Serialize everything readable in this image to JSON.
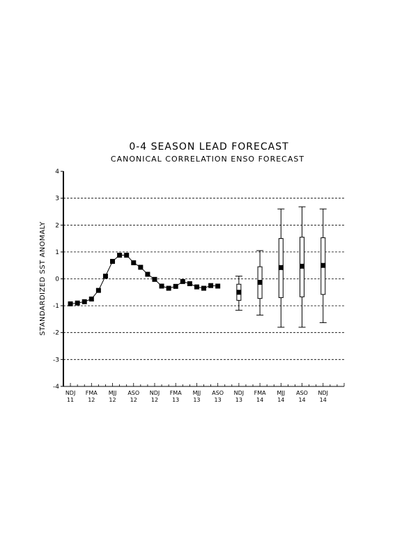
{
  "chart_data": {
    "type": "line",
    "title": "0-4 SEASON LEAD FORECAST",
    "subtitle": "CANONICAL CORRELATION ENSO FORECAST",
    "ylabel": "STANDARDIZED SST ANOMALY",
    "xlabel": "",
    "ylim": [
      -4,
      4
    ],
    "yticks": [
      -4,
      -3,
      -2,
      -1,
      0,
      1,
      2,
      3,
      4
    ],
    "grid": "horizontal dashed",
    "x_tick_labels": [
      {
        "season": "NDJ",
        "year": "11",
        "index": 0
      },
      {
        "season": "FMA",
        "year": "12",
        "index": 3
      },
      {
        "season": "MJJ",
        "year": "12",
        "index": 6
      },
      {
        "season": "ASO",
        "year": "12",
        "index": 9
      },
      {
        "season": "NDJ",
        "year": "12",
        "index": 12
      },
      {
        "season": "FMA",
        "year": "13",
        "index": 15
      },
      {
        "season": "MJJ",
        "year": "13",
        "index": 18
      },
      {
        "season": "ASO",
        "year": "13",
        "index": 21
      },
      {
        "season": "NDJ",
        "year": "13",
        "index": 24
      },
      {
        "season": "FMA",
        "year": "14",
        "index": 27
      },
      {
        "season": "MJJ",
        "year": "14",
        "index": 30
      },
      {
        "season": "ASO",
        "year": "14",
        "index": 33
      },
      {
        "season": "NDJ",
        "year": "14",
        "index": 36
      }
    ],
    "observed": [
      {
        "index": 0,
        "value": -0.93
      },
      {
        "index": 1,
        "value": -0.9
      },
      {
        "index": 2,
        "value": -0.85
      },
      {
        "index": 3,
        "value": -0.75
      },
      {
        "index": 4,
        "value": -0.43
      },
      {
        "index": 5,
        "value": 0.1
      },
      {
        "index": 6,
        "value": 0.65
      },
      {
        "index": 7,
        "value": 0.88
      },
      {
        "index": 8,
        "value": 0.88
      },
      {
        "index": 9,
        "value": 0.6
      },
      {
        "index": 10,
        "value": 0.43
      },
      {
        "index": 11,
        "value": 0.17
      },
      {
        "index": 12,
        "value": -0.02
      },
      {
        "index": 13,
        "value": -0.27
      },
      {
        "index": 14,
        "value": -0.35
      },
      {
        "index": 15,
        "value": -0.28
      },
      {
        "index": 16,
        "value": -0.1
      },
      {
        "index": 17,
        "value": -0.18
      },
      {
        "index": 18,
        "value": -0.3
      },
      {
        "index": 19,
        "value": -0.35
      },
      {
        "index": 20,
        "value": -0.25
      },
      {
        "index": 21,
        "value": -0.27
      }
    ],
    "forecasts": [
      {
        "index": 24,
        "median": -0.5,
        "box_low": -0.8,
        "box_high": -0.2,
        "whisker_low": -1.17,
        "whisker_high": 0.1
      },
      {
        "index": 27,
        "median": -0.13,
        "box_low": -0.73,
        "box_high": 0.45,
        "whisker_low": -1.35,
        "whisker_high": 1.05
      },
      {
        "index": 30,
        "median": 0.42,
        "box_low": -0.7,
        "box_high": 1.5,
        "whisker_low": -1.8,
        "whisker_high": 2.6
      },
      {
        "index": 33,
        "median": 0.47,
        "box_low": -0.67,
        "box_high": 1.55,
        "whisker_low": -1.8,
        "whisker_high": 2.68
      },
      {
        "index": 36,
        "median": 0.5,
        "box_low": -0.58,
        "box_high": 1.53,
        "whisker_low": -1.63,
        "whisker_high": 2.6
      }
    ],
    "x_index_range": [
      -1,
      39
    ]
  }
}
